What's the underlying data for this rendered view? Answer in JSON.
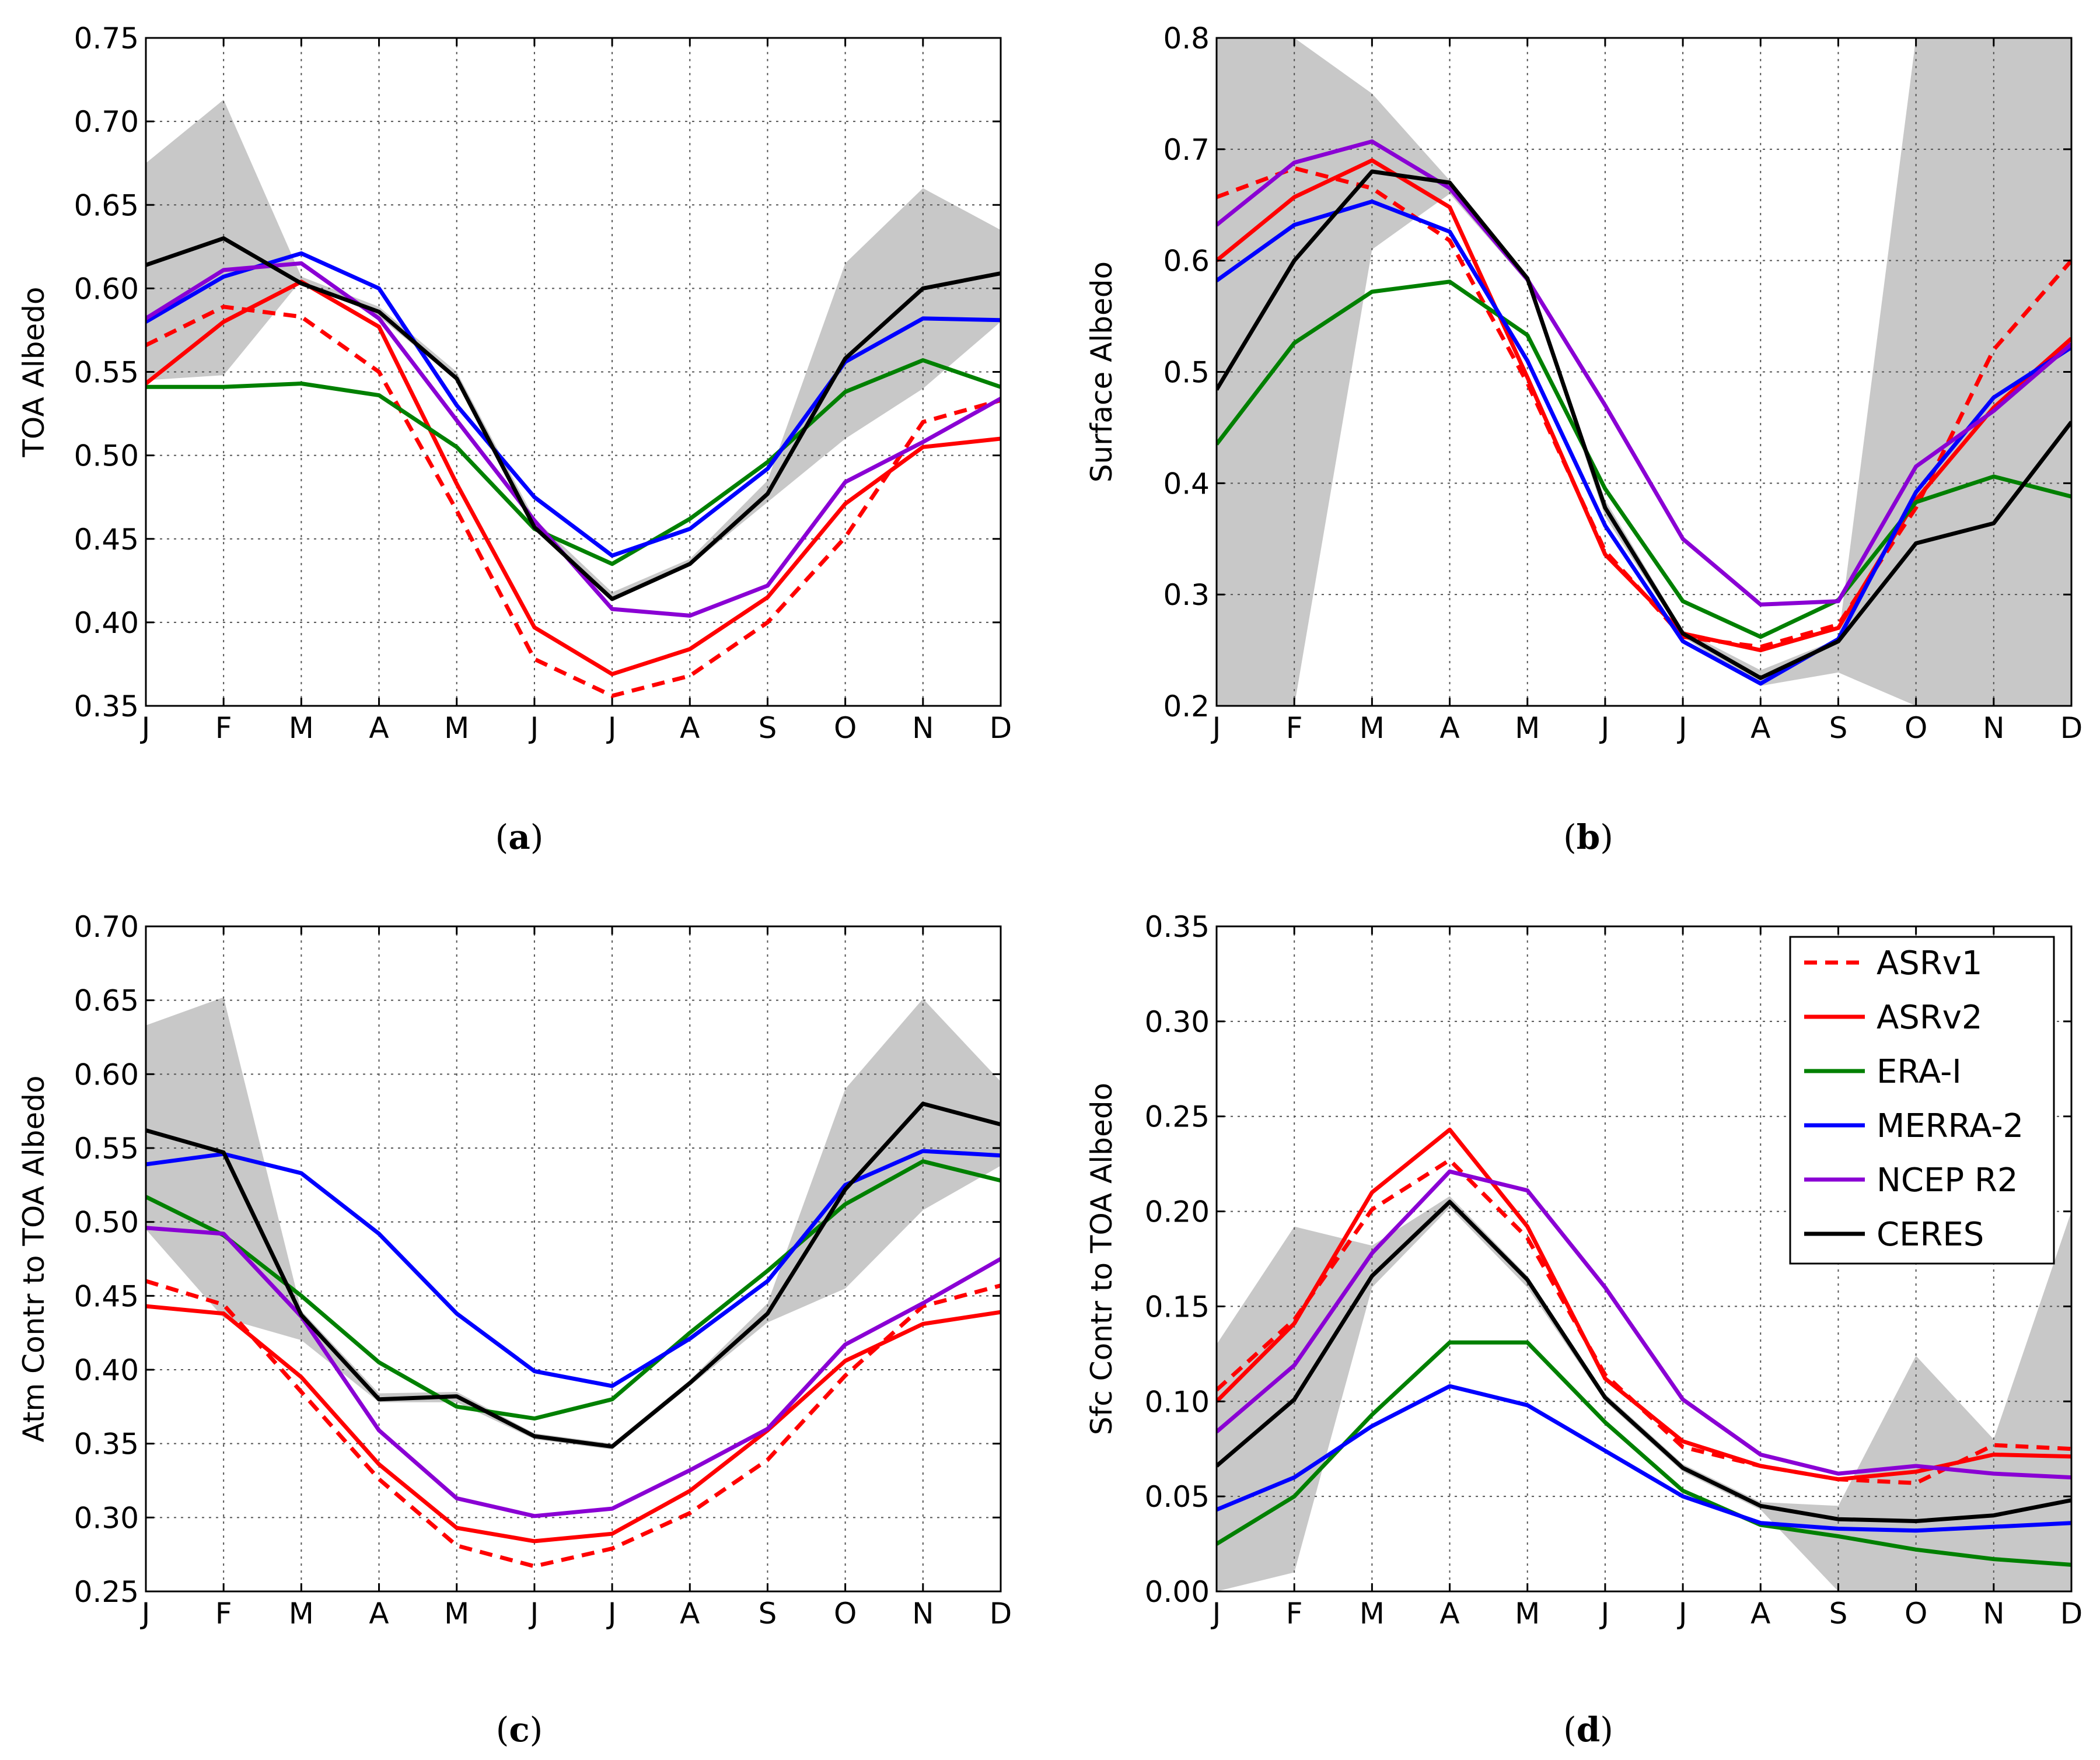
{
  "figure": {
    "legend_title_hidden": "",
    "legend": [
      {
        "name": "ASRv1",
        "color": "#ff0000",
        "dash": true
      },
      {
        "name": "ASRv2",
        "color": "#ff0000",
        "dash": false
      },
      {
        "name": "ERA-I",
        "color": "#008000",
        "dash": false
      },
      {
        "name": "MERRA-2",
        "color": "#0000ff",
        "dash": false
      },
      {
        "name": "NCEP R2",
        "color": "#8a00d4",
        "dash": false
      },
      {
        "name": "CERES",
        "color": "#000000",
        "dash": false
      }
    ]
  },
  "chart_data": [
    {
      "id": "a",
      "type": "line",
      "caption_letter": "a",
      "caption": "(a)",
      "ylabel": "TOA Albedo",
      "xlabel": "",
      "categories": [
        "J",
        "F",
        "M",
        "A",
        "M",
        "J",
        "J",
        "A",
        "S",
        "O",
        "N",
        "D"
      ],
      "ylim": [
        0.35,
        0.75
      ],
      "yticks": [
        "0.35",
        "0.40",
        "0.45",
        "0.50",
        "0.55",
        "0.60",
        "0.65",
        "0.70",
        "0.75"
      ],
      "grid": true,
      "band": {
        "name": "CERES uncertainty",
        "lower": [
          0.545,
          0.548,
          0.605,
          0.583,
          0.545,
          0.458,
          0.414,
          0.434,
          0.472,
          0.51,
          0.54,
          0.58
        ],
        "upper": [
          0.675,
          0.713,
          0.607,
          0.589,
          0.55,
          0.462,
          0.418,
          0.438,
          0.485,
          0.615,
          0.66,
          0.635
        ]
      },
      "series": [
        {
          "name": "ASRv1",
          "values": [
            0.566,
            0.589,
            0.583,
            0.55,
            0.467,
            0.378,
            0.356,
            0.368,
            0.4,
            0.451,
            0.52,
            0.533
          ]
        },
        {
          "name": "ASRv2",
          "values": [
            0.543,
            0.58,
            0.604,
            0.577,
            0.483,
            0.397,
            0.369,
            0.384,
            0.415,
            0.471,
            0.505,
            0.51
          ]
        },
        {
          "name": "ERA-I",
          "values": [
            0.541,
            0.541,
            0.543,
            0.536,
            0.505,
            0.456,
            0.435,
            0.462,
            0.496,
            0.538,
            0.557,
            0.541
          ]
        },
        {
          "name": "MERRA-2",
          "values": [
            0.58,
            0.607,
            0.621,
            0.6,
            0.53,
            0.475,
            0.44,
            0.456,
            0.492,
            0.556,
            0.582,
            0.581
          ]
        },
        {
          "name": "NCEP R2",
          "values": [
            0.582,
            0.611,
            0.615,
            0.582,
            0.521,
            0.461,
            0.408,
            0.404,
            0.422,
            0.484,
            0.508,
            0.534
          ]
        },
        {
          "name": "CERES",
          "values": [
            0.614,
            0.63,
            0.603,
            0.586,
            0.546,
            0.457,
            0.414,
            0.435,
            0.477,
            0.558,
            0.6,
            0.609
          ]
        }
      ]
    },
    {
      "id": "b",
      "type": "line",
      "caption_letter": "b",
      "caption": "(b)",
      "ylabel": "Surface Albedo",
      "xlabel": "",
      "categories": [
        "J",
        "F",
        "M",
        "A",
        "M",
        "J",
        "J",
        "A",
        "S",
        "O",
        "N",
        "D"
      ],
      "ylim": [
        0.2,
        0.8
      ],
      "yticks": [
        "0.2",
        "0.3",
        "0.4",
        "0.5",
        "0.6",
        "0.7",
        "0.8"
      ],
      "grid": true,
      "band": {
        "name": "CERES uncertainty",
        "lower": [
          0.2,
          0.2,
          0.61,
          0.66,
          0.58,
          0.37,
          0.262,
          0.218,
          0.23,
          0.2,
          0.2,
          0.2
        ],
        "upper": [
          0.8,
          0.8,
          0.75,
          0.672,
          0.586,
          0.385,
          0.268,
          0.232,
          0.26,
          0.8,
          0.8,
          0.8
        ]
      },
      "series": [
        {
          "name": "ASRv1",
          "values": [
            0.657,
            0.683,
            0.665,
            0.618,
            0.49,
            0.339,
            0.262,
            0.253,
            0.273,
            0.378,
            0.52,
            0.6
          ]
        },
        {
          "name": "ASRv2",
          "values": [
            0.6,
            0.657,
            0.69,
            0.648,
            0.495,
            0.336,
            0.265,
            0.25,
            0.27,
            0.385,
            0.468,
            0.53
          ]
        },
        {
          "name": "ERA-I",
          "values": [
            0.435,
            0.526,
            0.572,
            0.581,
            0.533,
            0.395,
            0.294,
            0.262,
            0.295,
            0.383,
            0.406,
            0.388
          ]
        },
        {
          "name": "MERRA-2",
          "values": [
            0.582,
            0.632,
            0.653,
            0.626,
            0.51,
            0.362,
            0.258,
            0.22,
            0.26,
            0.392,
            0.477,
            0.522
          ]
        },
        {
          "name": "NCEP R2",
          "values": [
            0.632,
            0.688,
            0.707,
            0.665,
            0.583,
            0.47,
            0.35,
            0.291,
            0.294,
            0.415,
            0.465,
            0.525
          ]
        },
        {
          "name": "CERES",
          "values": [
            0.484,
            0.6,
            0.68,
            0.67,
            0.584,
            0.378,
            0.265,
            0.225,
            0.258,
            0.346,
            0.364,
            0.455
          ]
        }
      ]
    },
    {
      "id": "c",
      "type": "line",
      "caption_letter": "c",
      "caption": "(c)",
      "ylabel": "Atm Contr to TOA Albedo",
      "xlabel": "",
      "categories": [
        "J",
        "F",
        "M",
        "A",
        "M",
        "J",
        "J",
        "A",
        "S",
        "O",
        "N",
        "D"
      ],
      "ylim": [
        0.25,
        0.7
      ],
      "yticks": [
        "0.25",
        "0.30",
        "0.35",
        "0.40",
        "0.45",
        "0.50",
        "0.55",
        "0.60",
        "0.65",
        "0.70"
      ],
      "grid": true,
      "band": {
        "name": "CERES uncertainty",
        "lower": [
          0.495,
          0.435,
          0.42,
          0.378,
          0.378,
          0.353,
          0.346,
          0.389,
          0.432,
          0.455,
          0.508,
          0.538
        ],
        "upper": [
          0.633,
          0.652,
          0.44,
          0.384,
          0.385,
          0.357,
          0.35,
          0.393,
          0.445,
          0.59,
          0.651,
          0.595
        ]
      },
      "series": [
        {
          "name": "ASRv1",
          "values": [
            0.46,
            0.444,
            0.385,
            0.326,
            0.281,
            0.267,
            0.279,
            0.303,
            0.339,
            0.396,
            0.443,
            0.457
          ]
        },
        {
          "name": "ASRv2",
          "values": [
            0.443,
            0.438,
            0.395,
            0.336,
            0.293,
            0.284,
            0.289,
            0.318,
            0.359,
            0.406,
            0.431,
            0.439
          ]
        },
        {
          "name": "ERA-I",
          "values": [
            0.517,
            0.491,
            0.45,
            0.405,
            0.375,
            0.367,
            0.38,
            0.425,
            0.467,
            0.512,
            0.541,
            0.528
          ]
        },
        {
          "name": "MERRA-2",
          "values": [
            0.539,
            0.546,
            0.533,
            0.492,
            0.438,
            0.399,
            0.389,
            0.421,
            0.46,
            0.525,
            0.548,
            0.545
          ]
        },
        {
          "name": "NCEP R2",
          "values": [
            0.496,
            0.492,
            0.436,
            0.359,
            0.313,
            0.301,
            0.306,
            0.332,
            0.36,
            0.417,
            0.445,
            0.475
          ]
        },
        {
          "name": "CERES",
          "values": [
            0.562,
            0.547,
            0.437,
            0.38,
            0.382,
            0.355,
            0.348,
            0.391,
            0.438,
            0.522,
            0.58,
            0.566
          ]
        }
      ]
    },
    {
      "id": "d",
      "type": "line",
      "caption_letter": "d",
      "caption": "(d)",
      "ylabel": "Sfc Contr to TOA Albedo",
      "xlabel": "",
      "categories": [
        "J",
        "F",
        "M",
        "A",
        "M",
        "J",
        "J",
        "A",
        "S",
        "O",
        "N",
        "D"
      ],
      "ylim": [
        0.0,
        0.35
      ],
      "yticks": [
        "0.00",
        "0.05",
        "0.10",
        "0.15",
        "0.20",
        "0.25",
        "0.30",
        "0.35"
      ],
      "grid": true,
      "legend_position": "upper-right",
      "band": {
        "name": "CERES uncertainty",
        "lower": [
          0.0,
          0.01,
          0.16,
          0.202,
          0.16,
          0.1,
          0.063,
          0.043,
          0.0,
          0.0,
          0.0,
          0.0
        ],
        "upper": [
          0.13,
          0.192,
          0.182,
          0.208,
          0.166,
          0.104,
          0.067,
          0.047,
          0.045,
          0.124,
          0.08,
          0.2
        ]
      },
      "series": [
        {
          "name": "ASRv1",
          "values": [
            0.106,
            0.143,
            0.201,
            0.227,
            0.186,
            0.114,
            0.076,
            0.066,
            0.059,
            0.057,
            0.077,
            0.075
          ]
        },
        {
          "name": "ASRv2",
          "values": [
            0.1,
            0.141,
            0.21,
            0.243,
            0.192,
            0.112,
            0.079,
            0.066,
            0.059,
            0.063,
            0.072,
            0.071
          ]
        },
        {
          "name": "ERA-I",
          "values": [
            0.025,
            0.05,
            0.093,
            0.131,
            0.131,
            0.089,
            0.053,
            0.035,
            0.029,
            0.022,
            0.017,
            0.014
          ]
        },
        {
          "name": "MERRA-2",
          "values": [
            0.043,
            0.06,
            0.087,
            0.108,
            0.098,
            0.074,
            0.05,
            0.036,
            0.033,
            0.032,
            0.034,
            0.036
          ]
        },
        {
          "name": "NCEP R2",
          "values": [
            0.084,
            0.119,
            0.178,
            0.221,
            0.211,
            0.16,
            0.101,
            0.072,
            0.062,
            0.066,
            0.062,
            0.06
          ]
        },
        {
          "name": "CERES",
          "values": [
            0.066,
            0.101,
            0.166,
            0.205,
            0.164,
            0.102,
            0.065,
            0.045,
            0.038,
            0.037,
            0.04,
            0.048
          ]
        }
      ]
    }
  ]
}
